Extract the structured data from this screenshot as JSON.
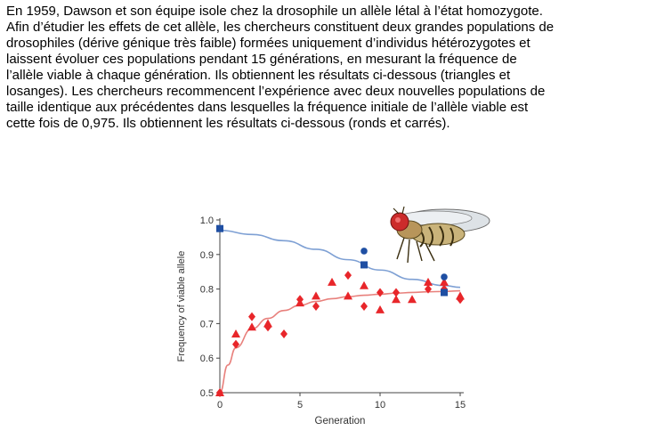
{
  "paragraph": {
    "lines": [
      "En 1959, Dawson et son équipe isole chez la drosophile un allèle létal à l’état homozygote.",
      "Afin d’étudier les effets de cet allèle, les chercheurs constituent deux grandes populations de",
      "drosophiles (dérive génique très faible) formées uniquement d’individus hétérozygotes et",
      "laissent évoluer ces populations pendant 15 générations, en mesurant la fréquence de",
      "l’allèle viable à chaque génération. Ils obtiennent les résultats ci-dessous (triangles et",
      "losanges). Les chercheurs recommencent l’expérience avec deux nouvelles populations de",
      "taille identique aux précédentes dans lesquelles la fréquence initiale de l’allèle viable est",
      "cette fois de 0,975. Ils obtiennent les résultats ci-dessous (ronds et carrés)."
    ]
  },
  "chart_data": {
    "type": "scatter",
    "xlabel": "Generation",
    "ylabel": "Frequency of viable allele",
    "xlim": [
      0,
      15
    ],
    "ylim": [
      0.5,
      1.0
    ],
    "xticks": [
      "0",
      "5",
      "10",
      "15"
    ],
    "yticks": [
      "0.5",
      "0.6",
      "0.7",
      "0.8",
      "0.9",
      "1.0"
    ],
    "series": [
      {
        "marker": "triangle",
        "color": "#e8262a",
        "points": [
          {
            "x": 0,
            "y": 0.5
          },
          {
            "x": 1,
            "y": 0.67
          },
          {
            "x": 2,
            "y": 0.69
          },
          {
            "x": 3,
            "y": 0.7
          },
          {
            "x": 5,
            "y": 0.76
          },
          {
            "x": 6,
            "y": 0.78
          },
          {
            "x": 7,
            "y": 0.82
          },
          {
            "x": 8,
            "y": 0.78
          },
          {
            "x": 9,
            "y": 0.81
          },
          {
            "x": 10,
            "y": 0.74
          },
          {
            "x": 11,
            "y": 0.77
          },
          {
            "x": 12,
            "y": 0.77
          },
          {
            "x": 13,
            "y": 0.82
          },
          {
            "x": 14,
            "y": 0.82
          },
          {
            "x": 15,
            "y": 0.78
          }
        ]
      },
      {
        "marker": "diamond",
        "color": "#e8262a",
        "points": [
          {
            "x": 0,
            "y": 0.5
          },
          {
            "x": 1,
            "y": 0.64
          },
          {
            "x": 2,
            "y": 0.72
          },
          {
            "x": 3,
            "y": 0.69
          },
          {
            "x": 4,
            "y": 0.67
          },
          {
            "x": 5,
            "y": 0.77
          },
          {
            "x": 6,
            "y": 0.75
          },
          {
            "x": 8,
            "y": 0.84
          },
          {
            "x": 9,
            "y": 0.75
          },
          {
            "x": 10,
            "y": 0.79
          },
          {
            "x": 11,
            "y": 0.79
          },
          {
            "x": 13,
            "y": 0.8
          },
          {
            "x": 14,
            "y": 0.8
          },
          {
            "x": 15,
            "y": 0.77
          }
        ]
      },
      {
        "marker": "circle",
        "color": "#1f4fa3",
        "points": [
          {
            "x": 0,
            "y": 0.975
          },
          {
            "x": 9,
            "y": 0.91
          },
          {
            "x": 14,
            "y": 0.835
          }
        ]
      },
      {
        "marker": "square",
        "color": "#1f4fa3",
        "points": [
          {
            "x": 0,
            "y": 0.975
          },
          {
            "x": 9,
            "y": 0.87
          },
          {
            "x": 14,
            "y": 0.79
          }
        ]
      }
    ],
    "curves": [
      {
        "color": "#e8807c",
        "points": [
          {
            "x": 0,
            "y": 0.5
          },
          {
            "x": 0.5,
            "y": 0.58
          },
          {
            "x": 1,
            "y": 0.63
          },
          {
            "x": 2,
            "y": 0.685
          },
          {
            "x": 3,
            "y": 0.715
          },
          {
            "x": 4,
            "y": 0.738
          },
          {
            "x": 5,
            "y": 0.753
          },
          {
            "x": 6,
            "y": 0.764
          },
          {
            "x": 7,
            "y": 0.772
          },
          {
            "x": 8,
            "y": 0.778
          },
          {
            "x": 9,
            "y": 0.782
          },
          {
            "x": 10,
            "y": 0.785
          },
          {
            "x": 11,
            "y": 0.788
          },
          {
            "x": 12,
            "y": 0.79
          },
          {
            "x": 13,
            "y": 0.792
          },
          {
            "x": 14,
            "y": 0.793
          },
          {
            "x": 15,
            "y": 0.795
          }
        ]
      },
      {
        "color": "#7ea0d4",
        "points": [
          {
            "x": 0,
            "y": 0.97
          },
          {
            "x": 2,
            "y": 0.958
          },
          {
            "x": 4,
            "y": 0.94
          },
          {
            "x": 6,
            "y": 0.915
          },
          {
            "x": 8,
            "y": 0.885
          },
          {
            "x": 10,
            "y": 0.855
          },
          {
            "x": 12,
            "y": 0.828
          },
          {
            "x": 14,
            "y": 0.81
          },
          {
            "x": 15,
            "y": 0.805
          }
        ]
      }
    ],
    "illustration": "fruit-fly"
  }
}
